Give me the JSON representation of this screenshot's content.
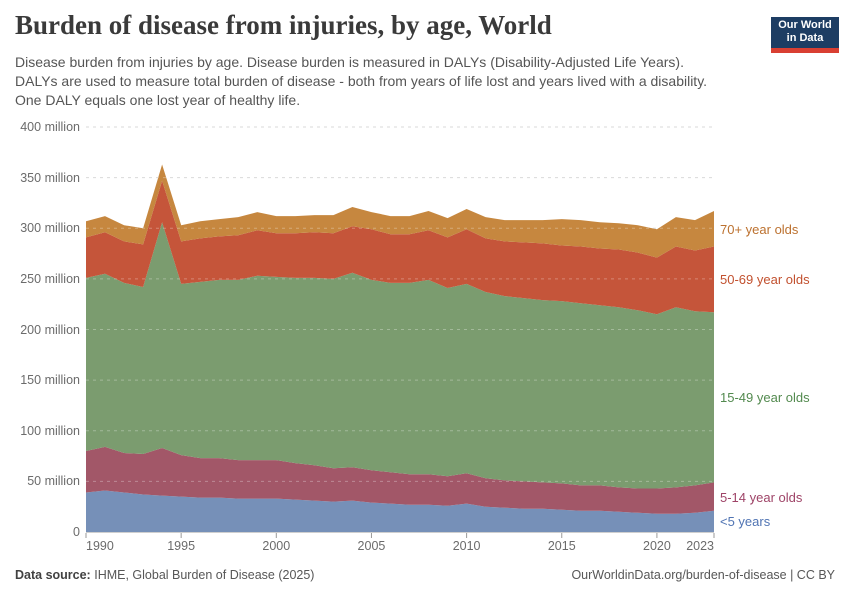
{
  "header": {
    "title": "Burden of disease from injuries, by age, World",
    "subtitle_lines": [
      "Disease burden from injuries by age. Disease burden is measured in DALYs (Disability-Adjusted Life Years).",
      "DALYs are used to measure total burden of disease - both from years of life lost and years lived with a disability.",
      "One DALY equals one lost year of healthy life."
    ],
    "logo": {
      "line1": "Our World",
      "line2": "in Data"
    }
  },
  "chart_data": {
    "type": "area",
    "stacked": true,
    "title": "Burden of disease from injuries, by age, World",
    "xlabel": "",
    "ylabel": "",
    "values_unit": "million DALYs",
    "grid": true,
    "legend_position": "right",
    "xlim": [
      1990,
      2023
    ],
    "ylim_millions": [
      0,
      400
    ],
    "x": [
      1990,
      1991,
      1992,
      1993,
      1994,
      1995,
      1996,
      1997,
      1998,
      1999,
      2000,
      2001,
      2002,
      2003,
      2004,
      2005,
      2006,
      2007,
      2008,
      2009,
      2010,
      2011,
      2012,
      2013,
      2014,
      2015,
      2016,
      2017,
      2018,
      2019,
      2020,
      2021,
      2022,
      2023
    ],
    "x_ticks": [
      1990,
      1995,
      2000,
      2005,
      2010,
      2015,
      2020,
      2023
    ],
    "y_ticks": [
      {
        "value": 0,
        "label": "0"
      },
      {
        "value": 50,
        "label": "50 million"
      },
      {
        "value": 100,
        "label": "100 million"
      },
      {
        "value": 150,
        "label": "150 million"
      },
      {
        "value": 200,
        "label": "200 million"
      },
      {
        "value": 250,
        "label": "250 million"
      },
      {
        "value": 300,
        "label": "300 million"
      },
      {
        "value": 350,
        "label": "350 million"
      },
      {
        "value": 400,
        "label": "400 million"
      }
    ],
    "series": [
      {
        "name": "<5 years",
        "fill_color": "#7690b8",
        "label_color": "#5074b3",
        "values_millions": [
          39,
          41,
          39,
          37,
          36,
          35,
          34,
          34,
          33,
          33,
          33,
          32,
          31,
          30,
          31,
          29,
          28,
          27,
          27,
          26,
          28,
          25,
          24,
          23,
          23,
          22,
          21,
          21,
          20,
          19,
          18,
          18,
          19,
          21
        ]
      },
      {
        "name": "5-14 year olds",
        "fill_color": "#a25768",
        "label_color": "#9e4367",
        "values_millions": [
          41,
          43,
          39,
          40,
          47,
          41,
          39,
          39,
          38,
          38,
          38,
          36,
          35,
          33,
          33,
          32,
          31,
          30,
          30,
          29,
          30,
          28,
          27,
          27,
          26,
          26,
          25,
          25,
          24,
          24,
          25,
          26,
          27,
          28
        ]
      },
      {
        "name": "15-49 year olds",
        "fill_color": "#7b9c6f",
        "label_color": "#538a4f",
        "values_millions": [
          171,
          171,
          168,
          165,
          223,
          169,
          174,
          176,
          178,
          182,
          181,
          183,
          185,
          187,
          192,
          188,
          187,
          189,
          192,
          186,
          187,
          184,
          182,
          181,
          180,
          180,
          180,
          178,
          178,
          176,
          172,
          178,
          172,
          168
        ]
      },
      {
        "name": "50-69 year olds",
        "fill_color": "#c5553a",
        "label_color": "#c2512f",
        "values_millions": [
          40,
          41,
          41,
          42,
          41,
          42,
          43,
          43,
          44,
          45,
          43,
          44,
          45,
          45,
          46,
          50,
          48,
          48,
          49,
          50,
          54,
          53,
          54,
          55,
          56,
          55,
          56,
          56,
          57,
          57,
          56,
          60,
          60,
          65
        ]
      },
      {
        "name": "70+ year olds",
        "fill_color": "#c6873f",
        "label_color": "#bc712f",
        "values_millions": [
          16,
          16,
          16,
          16,
          16,
          16,
          17,
          17,
          18,
          18,
          17,
          17,
          17,
          18,
          19,
          17,
          18,
          18,
          19,
          19,
          20,
          21,
          21,
          22,
          23,
          26,
          26,
          26,
          26,
          27,
          28,
          29,
          30,
          35
        ]
      }
    ]
  },
  "footer": {
    "source_label": "Data source:",
    "source_text": "IHME, Global Burden of Disease (2025)",
    "attribution": "OurWorldinData.org/burden-of-disease | CC BY"
  },
  "colors": {
    "logo_bg": "#1d3d63",
    "logo_bar": "#d93f32",
    "grid": "#d9d9d9",
    "grid_over_area": "rgba(255,255,255,0.3)",
    "axis": "#cfcfcf",
    "tick": "#9a9a9a"
  }
}
